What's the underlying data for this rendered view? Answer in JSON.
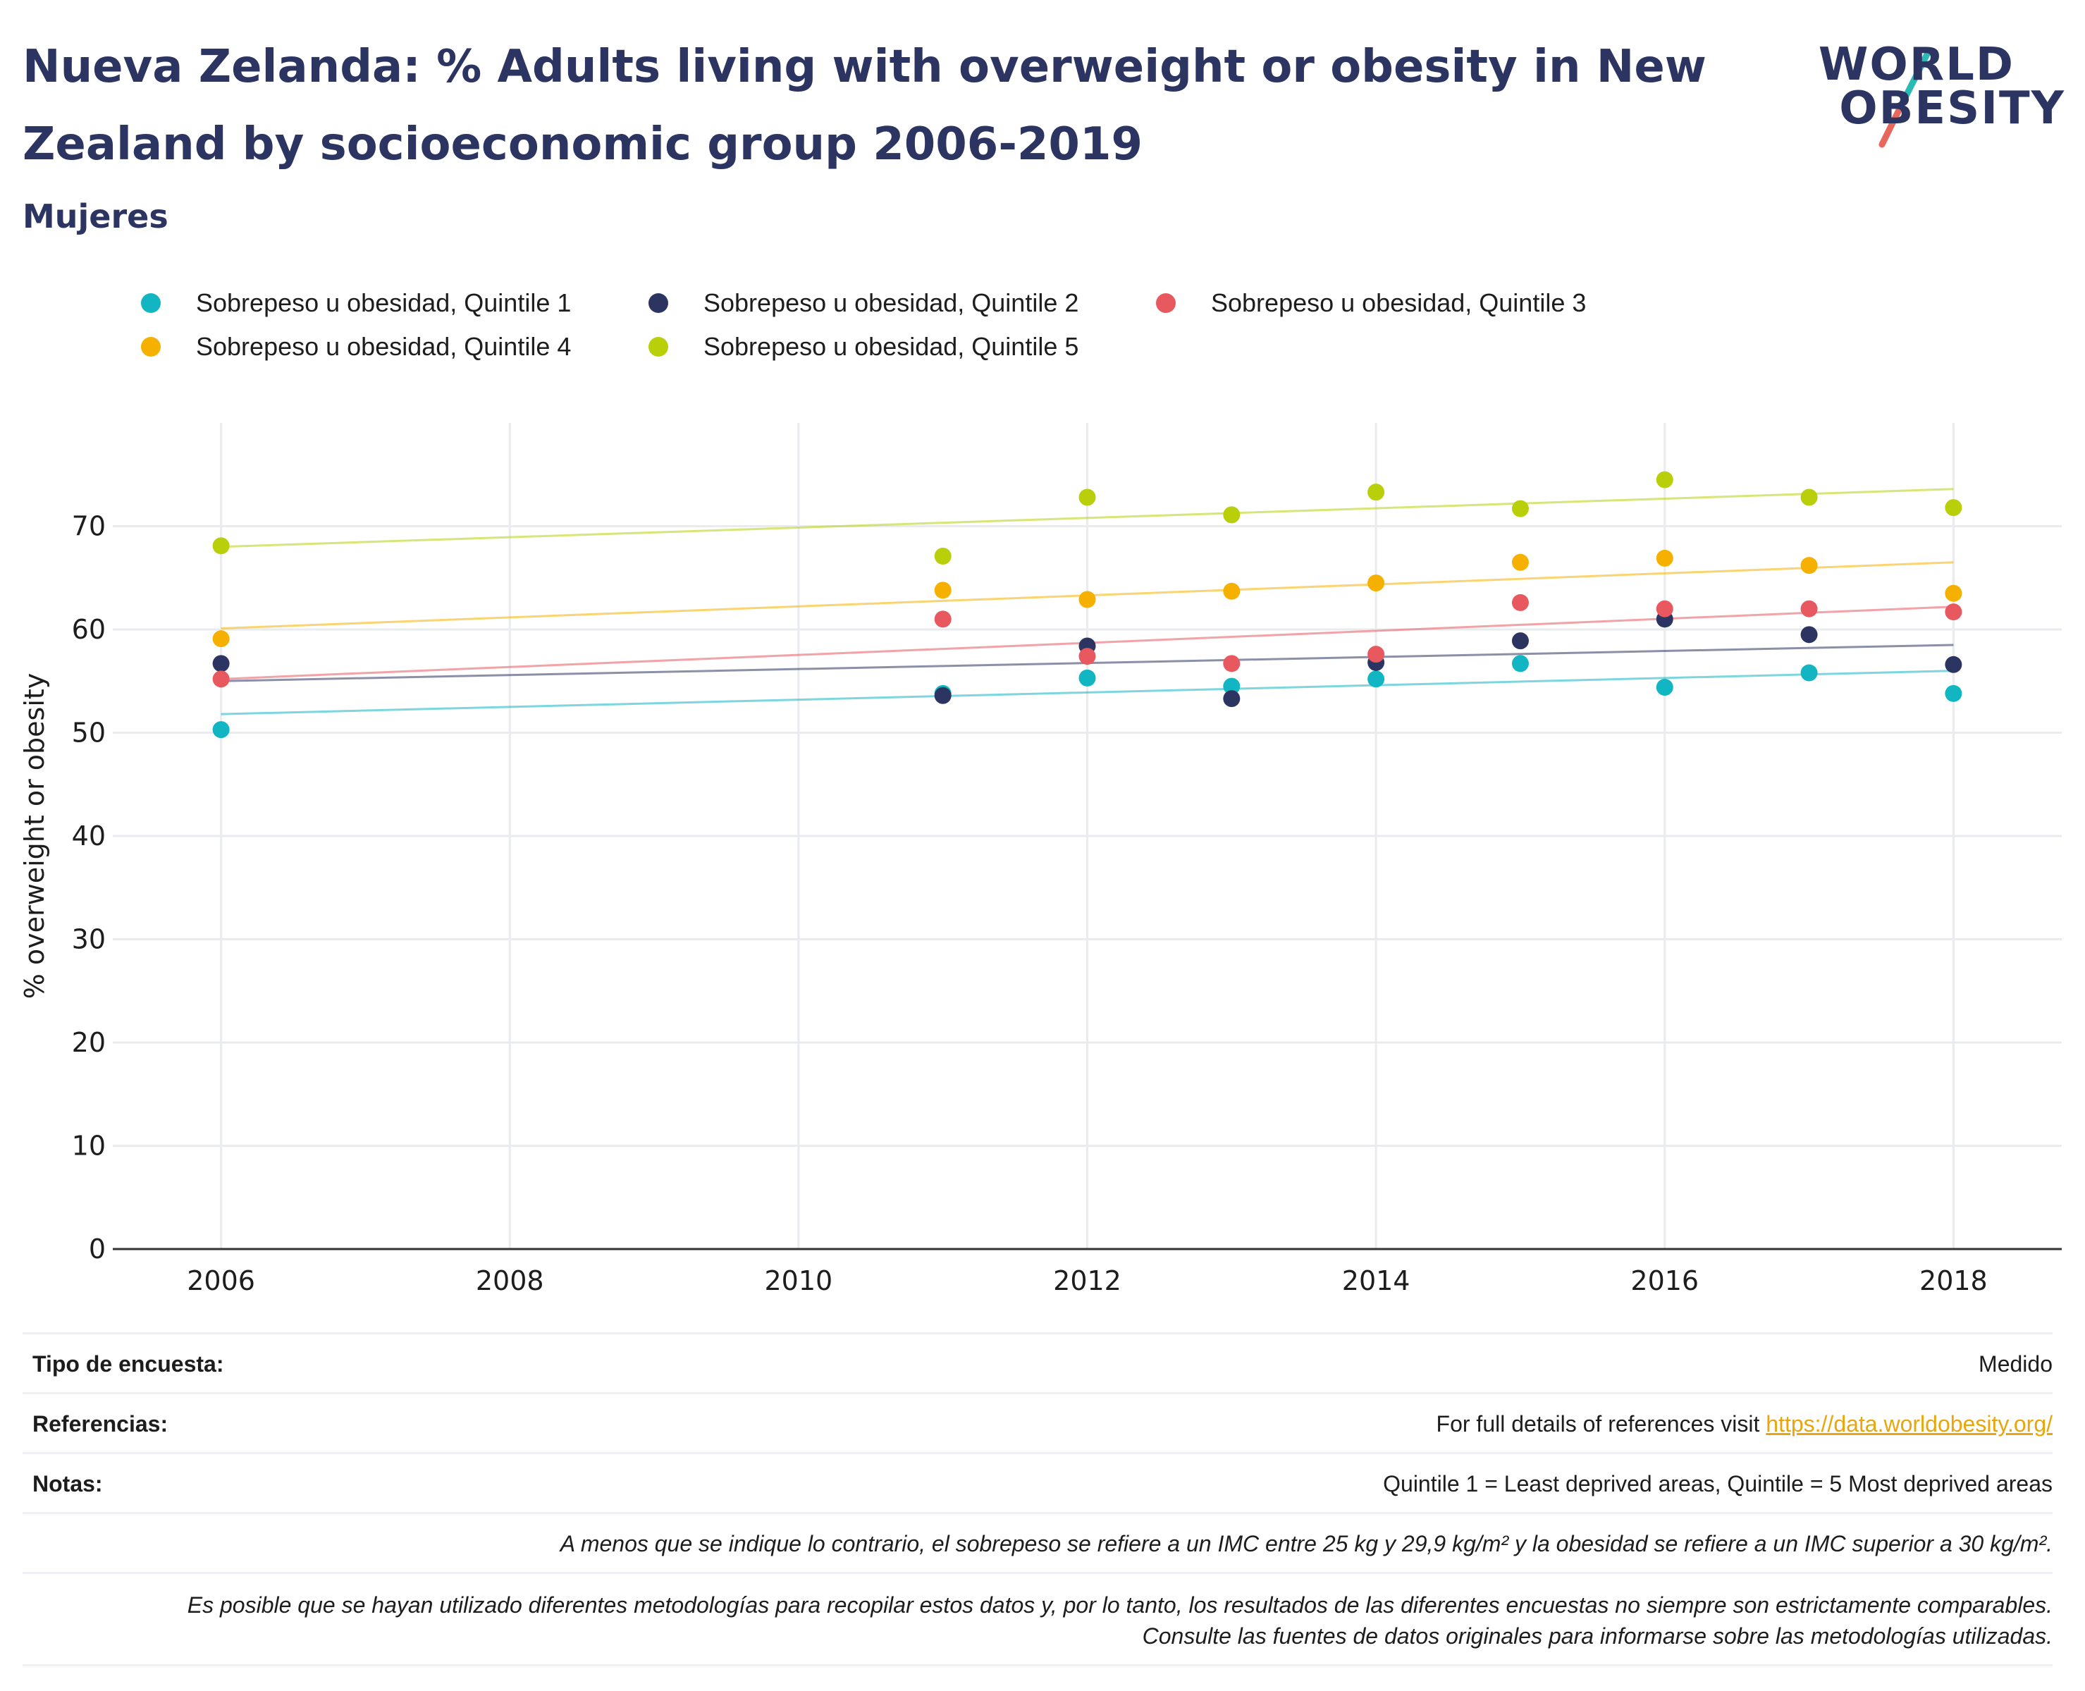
{
  "header": {
    "title": "Nueva Zelanda: % Adults living with overweight or obesity in New Zealand by socioeconomic group 2006-2019",
    "subtitle": "Mujeres",
    "logo_line1": "WORLD",
    "logo_line2": "OBESITY"
  },
  "legend": {
    "items": [
      {
        "label": "Sobrepeso u obesidad, Quintile 1",
        "color": "#12b5c2"
      },
      {
        "label": "Sobrepeso u obesidad, Quintile 2",
        "color": "#2c3461"
      },
      {
        "label": "Sobrepeso u obesidad, Quintile 3",
        "color": "#e8585f"
      },
      {
        "label": "Sobrepeso u obesidad, Quintile 4",
        "color": "#f5b000"
      },
      {
        "label": "Sobrepeso u obesidad, Quintile 5",
        "color": "#b8cf0a"
      }
    ]
  },
  "chart_data": {
    "type": "scatter",
    "ylabel": "% overweight or obesity",
    "xlabel": "",
    "xlim": [
      2005.25,
      2018.75
    ],
    "ylim": [
      0,
      80
    ],
    "x_ticks": [
      2006,
      2008,
      2010,
      2012,
      2014,
      2016,
      2018
    ],
    "y_ticks": [
      0,
      10,
      20,
      30,
      40,
      50,
      60,
      70
    ],
    "grid": true,
    "legend_position": "top",
    "trendlines": true,
    "series": [
      {
        "name": "Sobrepeso u obesidad, Quintile 1",
        "color": "#12b5c2",
        "x": [
          2006,
          2011,
          2012,
          2013,
          2014,
          2015,
          2016,
          2017,
          2018
        ],
        "y": [
          50.3,
          53.8,
          55.3,
          54.5,
          55.2,
          56.7,
          54.4,
          55.8,
          53.8
        ],
        "trend": [
          51.8,
          56.0
        ]
      },
      {
        "name": "Sobrepeso u obesidad, Quintile 2",
        "color": "#2c3461",
        "x": [
          2006,
          2011,
          2012,
          2013,
          2014,
          2015,
          2016,
          2017,
          2018
        ],
        "y": [
          56.7,
          53.6,
          58.4,
          53.3,
          56.8,
          58.9,
          61.0,
          59.5,
          56.6
        ],
        "trend": [
          55.0,
          58.5
        ]
      },
      {
        "name": "Sobrepeso u obesidad, Quintile 3",
        "color": "#e8585f",
        "x": [
          2006,
          2011,
          2012,
          2013,
          2014,
          2015,
          2016,
          2017,
          2018
        ],
        "y": [
          55.2,
          61.0,
          57.4,
          56.7,
          57.6,
          62.6,
          62.0,
          62.0,
          61.7
        ],
        "trend": [
          55.2,
          62.2
        ]
      },
      {
        "name": "Sobrepeso u obesidad, Quintile 4",
        "color": "#f5b000",
        "x": [
          2006,
          2011,
          2012,
          2013,
          2014,
          2015,
          2016,
          2017,
          2018
        ],
        "y": [
          59.1,
          63.8,
          62.9,
          63.7,
          64.5,
          66.5,
          66.9,
          66.2,
          63.5
        ],
        "trend": [
          60.1,
          66.5
        ]
      },
      {
        "name": "Sobrepeso u obesidad, Quintile 5",
        "color": "#b8cf0a",
        "x": [
          2006,
          2011,
          2012,
          2013,
          2014,
          2015,
          2016,
          2017,
          2018
        ],
        "y": [
          68.1,
          67.1,
          72.8,
          71.1,
          73.3,
          71.7,
          74.5,
          72.8,
          71.8
        ],
        "trend": [
          68.0,
          73.6
        ]
      }
    ]
  },
  "footer": {
    "survey_label": "Tipo de encuesta:",
    "survey_value": "Medido",
    "refs_label": "Referencias:",
    "refs_text": "For full details of references visit ",
    "refs_link": "https://data.worldobesity.org/",
    "notes_label": "Notas:",
    "notes_value": "Quintile 1 = Least deprived areas, Quintile = 5 Most deprived areas",
    "note_bmi": "A menos que se indique lo contrario, el sobrepeso se refiere a un IMC entre 25 kg y 29,9 kg/m² y la obesidad se refiere a un IMC superior a 30 kg/m².",
    "note_methods": "Es posible que se hayan utilizado diferentes metodologías para recopilar estos datos y, por lo tanto, los resultados de las diferentes encuestas no siempre son estrictamente comparables. Consulte las fuentes de datos originales para informarse sobre las metodologías utilizadas."
  }
}
